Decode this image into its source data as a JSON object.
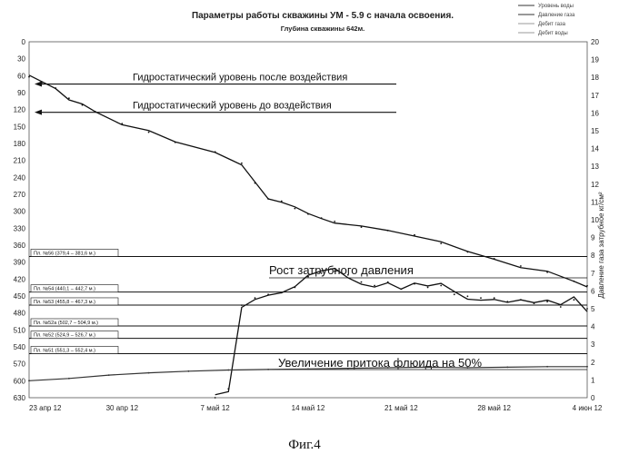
{
  "chart_data": {
    "type": "line",
    "title": "Параметры работы скважины УМ - 5.9 с начала освоения.",
    "subtitle": "Глубина скважины 642м.",
    "caption": "Фиг.4",
    "xlabel": "",
    "ylabel": "",
    "y2label": "Давление газа затрубное кг/см²",
    "x_ticks": [
      "23 апр 12",
      "30 апр 12",
      "7 май 12",
      "14 май 12",
      "21 май 12",
      "28 май 12",
      "4 июн 12"
    ],
    "y_ticks": [
      0,
      30,
      60,
      90,
      120,
      150,
      180,
      210,
      240,
      270,
      300,
      330,
      360,
      390,
      420,
      450,
      480,
      510,
      540,
      570,
      600,
      630
    ],
    "ylim": [
      0,
      630
    ],
    "y_inverted": true,
    "y2_ticks": [
      20,
      19,
      18,
      17,
      16,
      15,
      14,
      13,
      12,
      11,
      10,
      9,
      8,
      7,
      6,
      5,
      4,
      3,
      2,
      1,
      0
    ],
    "y2lim": [
      0,
      20
    ],
    "grid": false,
    "legend_position": "top-right",
    "legend": [
      "Уровень воды",
      "Давление газа",
      "Дебит газа",
      "Дебит воды"
    ],
    "annotations": [
      {
        "text": "Гидростатический уровень после воздействия",
        "depth": 70
      },
      {
        "text": "Гидростатический уровень до воздействия",
        "depth": 120
      },
      {
        "text": "Рост затрубного давления",
        "depth": 430
      },
      {
        "text": "Увеличение притока флюида на 50%",
        "depth": 588
      }
    ],
    "layers": [
      {
        "label": "Пл. №56 (379,4 – 381,6 м.)",
        "depth": 380
      },
      {
        "label": "Пл. №54 (440,1 – 442,7 м.)",
        "depth": 443
      },
      {
        "label": "Пл. №53 (455,8 – 467,3 м.)",
        "depth": 466
      },
      {
        "label": "Пл. №52а (502,7 – 504,9 м.)",
        "depth": 503
      },
      {
        "label": "Пл. №52 (524,9 – 526,7 м.)",
        "depth": 525
      },
      {
        "label": "Пл. №51 (551,3 – 552,4 м.)",
        "depth": 552
      }
    ],
    "series": [
      {
        "name": "Уровень воды",
        "axis": "left",
        "x": [
          0,
          1,
          2,
          3,
          4,
          5,
          7,
          9,
          11,
          14,
          16,
          17,
          18,
          19,
          20,
          21,
          22,
          23,
          25,
          27,
          29,
          31,
          33,
          35,
          37,
          39,
          41,
          42
        ],
        "y": [
          62,
          72,
          82,
          100,
          112,
          124,
          145,
          160,
          178,
          195,
          215,
          250,
          278,
          282,
          295,
          305,
          312,
          318,
          328,
          334,
          342,
          357,
          372,
          384,
          397,
          408,
          424,
          432
        ]
      },
      {
        "name": "Давление газа",
        "axis": "right",
        "x": [
          14,
          15,
          16,
          17,
          18,
          19,
          20,
          21,
          22,
          23,
          24,
          25,
          26,
          27,
          28,
          29,
          30,
          31,
          32,
          33,
          34,
          35,
          36,
          37,
          38,
          39,
          40,
          41,
          42
        ],
        "y": [
          0,
          0.5,
          5.2,
          5.6,
          5.8,
          5.9,
          6.2,
          6.8,
          7.0,
          7.1,
          6.9,
          6.5,
          6.3,
          6.5,
          6.1,
          6.4,
          6.2,
          6.3,
          5.8,
          5.7,
          5.6,
          5.6,
          5.4,
          5.5,
          5.3,
          5.4,
          5.1,
          5.5,
          5.0
        ]
      },
      {
        "name": "Дебит воды",
        "axis": "left",
        "x": [
          0,
          3,
          6,
          9,
          12,
          15,
          18,
          21,
          24,
          27,
          30,
          33,
          36,
          39,
          42
        ],
        "y": [
          600,
          596,
          590,
          586,
          583,
          581,
          580,
          579,
          578,
          577,
          576,
          577,
          576,
          575,
          575
        ]
      }
    ]
  }
}
